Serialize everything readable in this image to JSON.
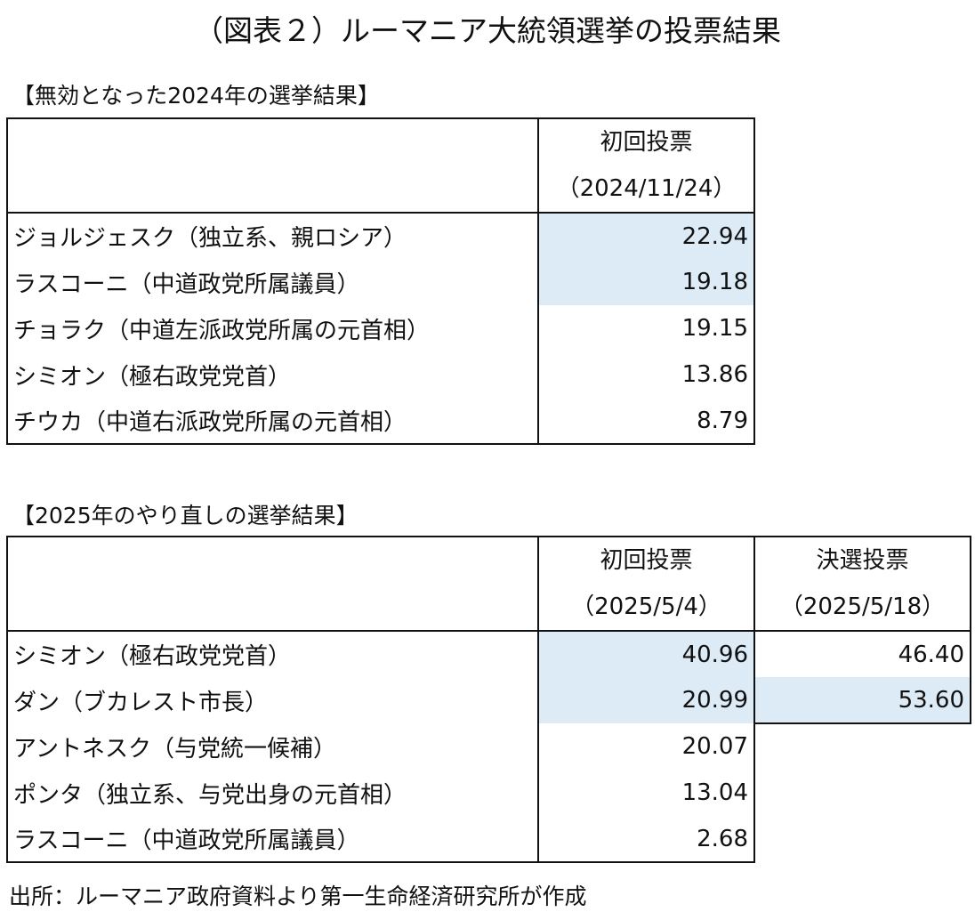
{
  "title": "（図表２）ルーマニア大統領選挙の投票結果",
  "section1": {
    "label": "【無効となった2024年の選挙結果】",
    "header": {
      "col1_line1": "初回投票",
      "col1_line2": "（2024/11/24）"
    },
    "rows": [
      {
        "name": "ジョルジェスク（独立系、親ロシア）",
        "first": "22.94",
        "highlight": true
      },
      {
        "name": "ラスコーニ（中道政党所属議員）",
        "first": "19.18",
        "highlight": true
      },
      {
        "name": "チョラク（中道左派政党所属の元首相）",
        "first": "19.15",
        "highlight": false
      },
      {
        "name": "シミオン（極右政党党首）",
        "first": "13.86",
        "highlight": false
      },
      {
        "name": "チウカ（中道右派政党所属の元首相）",
        "first": "8.79",
        "highlight": false
      }
    ]
  },
  "section2": {
    "label": "【2025年のやり直しの選挙結果】",
    "header": {
      "col1_line1": "初回投票",
      "col1_line2": "（2025/5/4）",
      "col2_line1": "決選投票",
      "col2_line2": "（2025/5/18）"
    },
    "rows": [
      {
        "name": "シミオン（極右政党党首）",
        "first": "40.96",
        "runoff": "46.40"
      },
      {
        "name": "ダン（ブカレスト市長）",
        "first": "20.99",
        "runoff": "53.60"
      },
      {
        "name": "アントネスク（与党統一候補）",
        "first": "20.07"
      },
      {
        "name": "ポンタ（独立系、与党出身の元首相）",
        "first": "13.04"
      },
      {
        "name": "ラスコーニ（中道政党所属議員）",
        "first": "2.68"
      }
    ]
  },
  "highlight_color": "#DDEBF7",
  "footer": "出所：ルーマニア政府資料より第一生命経済研究所が作成"
}
